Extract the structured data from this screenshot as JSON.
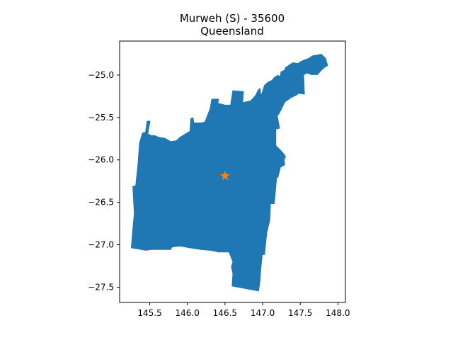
{
  "chart_data": {
    "type": "map",
    "title": "Murweh (S) - 35600",
    "subtitle": "Queensland",
    "xlim": [
      145.1,
      148.1
    ],
    "ylim": [
      -27.68,
      -24.6
    ],
    "x_ticks": [
      145.5,
      146.0,
      146.5,
      147.0,
      147.5,
      148.0
    ],
    "x_tick_labels": [
      "145.5",
      "146.0",
      "146.5",
      "147.0",
      "147.5",
      "148.0"
    ],
    "y_ticks": [
      -25.0,
      -25.5,
      -26.0,
      -26.5,
      -27.0,
      -27.5
    ],
    "y_tick_labels": [
      "−25.0",
      "−25.5",
      "−26.0",
      "−26.5",
      "−27.0",
      "−27.5"
    ],
    "region": {
      "fill_color": "#1f77b4",
      "boundary": [
        [
          145.31,
          -26.3
        ],
        [
          145.34,
          -26.04
        ],
        [
          145.36,
          -25.8
        ],
        [
          145.4,
          -25.68
        ],
        [
          145.44,
          -25.67
        ],
        [
          145.46,
          -25.54
        ],
        [
          145.51,
          -25.54
        ],
        [
          145.49,
          -25.63
        ],
        [
          145.48,
          -25.69
        ],
        [
          145.52,
          -25.71
        ],
        [
          145.57,
          -25.71
        ],
        [
          145.62,
          -25.73
        ],
        [
          145.7,
          -25.74
        ],
        [
          145.78,
          -25.78
        ],
        [
          145.85,
          -25.77
        ],
        [
          145.9,
          -25.73
        ],
        [
          146.03,
          -25.66
        ],
        [
          146.04,
          -25.51
        ],
        [
          146.08,
          -25.5
        ],
        [
          146.09,
          -25.56
        ],
        [
          146.19,
          -25.56
        ],
        [
          146.23,
          -25.55
        ],
        [
          146.3,
          -25.39
        ],
        [
          146.32,
          -25.28
        ],
        [
          146.42,
          -25.28
        ],
        [
          146.41,
          -25.33
        ],
        [
          146.5,
          -25.35
        ],
        [
          146.57,
          -25.35
        ],
        [
          146.6,
          -25.18
        ],
        [
          146.75,
          -25.19
        ],
        [
          146.74,
          -25.32
        ],
        [
          146.84,
          -25.3
        ],
        [
          146.9,
          -25.24
        ],
        [
          146.94,
          -25.17
        ],
        [
          146.97,
          -25.15
        ],
        [
          146.98,
          -25.23
        ],
        [
          147.02,
          -25.12
        ],
        [
          147.07,
          -25.08
        ],
        [
          147.12,
          -25.06
        ],
        [
          147.16,
          -25.02
        ],
        [
          147.2,
          -25.0
        ],
        [
          147.23,
          -25.01
        ],
        [
          147.24,
          -24.96
        ],
        [
          147.29,
          -24.94
        ],
        [
          147.3,
          -24.91
        ],
        [
          147.35,
          -24.88
        ],
        [
          147.4,
          -24.85
        ],
        [
          147.47,
          -24.86
        ],
        [
          147.5,
          -24.84
        ],
        [
          147.55,
          -24.82
        ],
        [
          147.61,
          -24.8
        ],
        [
          147.66,
          -24.77
        ],
        [
          147.72,
          -24.76
        ],
        [
          147.78,
          -24.75
        ],
        [
          147.84,
          -24.8
        ],
        [
          147.87,
          -24.89
        ],
        [
          147.83,
          -24.91
        ],
        [
          147.78,
          -24.95
        ],
        [
          147.73,
          -25.0
        ],
        [
          147.65,
          -25.0
        ],
        [
          147.59,
          -24.98
        ],
        [
          147.55,
          -25.0
        ],
        [
          147.56,
          -25.23
        ],
        [
          147.48,
          -25.22
        ],
        [
          147.45,
          -25.24
        ],
        [
          147.38,
          -25.27
        ],
        [
          147.3,
          -25.32
        ],
        [
          147.25,
          -25.41
        ],
        [
          147.22,
          -25.46
        ],
        [
          147.2,
          -25.48
        ],
        [
          147.23,
          -25.63
        ],
        [
          147.18,
          -25.64
        ],
        [
          147.18,
          -25.83
        ],
        [
          147.26,
          -25.9
        ],
        [
          147.31,
          -25.96
        ],
        [
          147.29,
          -26.0
        ],
        [
          147.3,
          -26.06
        ],
        [
          147.24,
          -26.09
        ],
        [
          147.21,
          -26.2
        ],
        [
          147.19,
          -26.22
        ],
        [
          147.16,
          -26.52
        ],
        [
          147.11,
          -26.52
        ],
        [
          147.1,
          -26.71
        ],
        [
          147.06,
          -26.86
        ],
        [
          147.03,
          -27.12
        ],
        [
          147.0,
          -27.12
        ],
        [
          146.98,
          -27.29
        ],
        [
          146.97,
          -27.43
        ],
        [
          146.95,
          -27.55
        ],
        [
          146.59,
          -27.49
        ],
        [
          146.6,
          -27.34
        ],
        [
          146.58,
          -27.26
        ],
        [
          146.6,
          -27.2
        ],
        [
          146.55,
          -27.09
        ],
        [
          146.4,
          -27.09
        ],
        [
          146.37,
          -27.08
        ],
        [
          146.3,
          -27.07
        ],
        [
          146.18,
          -27.06
        ],
        [
          146.1,
          -27.05
        ],
        [
          145.9,
          -27.02
        ],
        [
          145.8,
          -27.03
        ],
        [
          145.78,
          -27.06
        ],
        [
          145.52,
          -27.06
        ],
        [
          145.45,
          -27.07
        ],
        [
          145.25,
          -27.04
        ],
        [
          145.27,
          -26.82
        ],
        [
          145.29,
          -26.63
        ],
        [
          145.27,
          -26.31
        ]
      ]
    },
    "marker": {
      "symbol": "star",
      "lon": 146.5,
      "lat": -26.19,
      "color": "#ff7f0e"
    }
  }
}
